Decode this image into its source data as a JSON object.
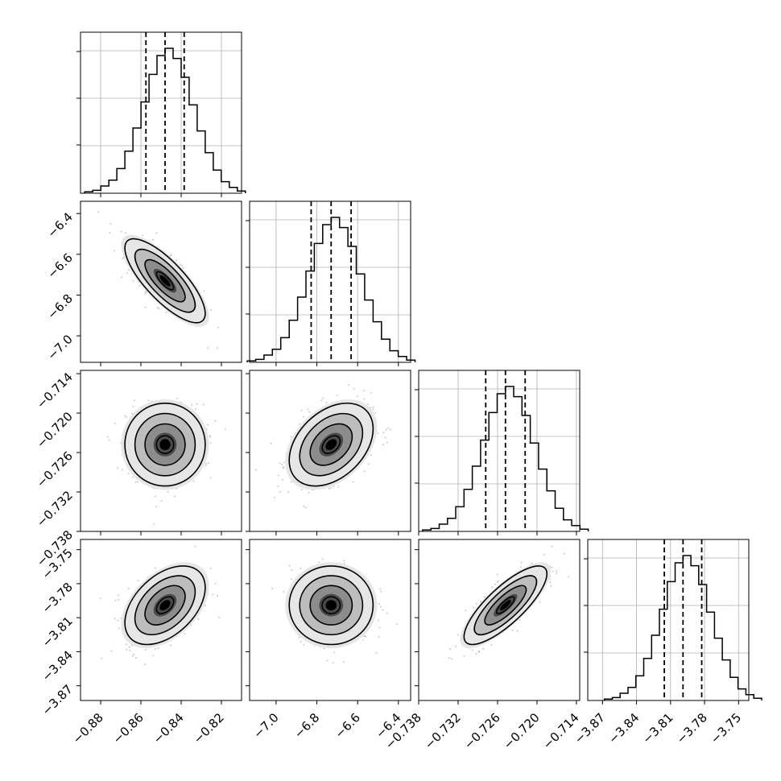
{
  "chart_data": {
    "type": "corner",
    "parameters": [
      {
        "axis_range": [
          -0.89,
          -0.81
        ],
        "ticks": [
          -0.88,
          -0.86,
          -0.84,
          -0.82
        ],
        "tick_labels": [
          "−0.88",
          "−0.86",
          "−0.84",
          "−0.82"
        ],
        "mean": -0.848,
        "sd": 0.0095,
        "quantiles": [
          -0.8575,
          -0.848,
          -0.8385
        ]
      },
      {
        "axis_range": [
          -7.13,
          -6.34
        ],
        "ticks": [
          -7.0,
          -6.8,
          -6.6,
          -6.4
        ],
        "tick_labels": [
          "−7.0",
          "−6.8",
          "−6.6",
          "−6.4"
        ],
        "mean": -6.73,
        "sd": 0.098,
        "quantiles": [
          -6.828,
          -6.73,
          -6.632
        ]
      },
      {
        "axis_range": [
          -0.738,
          -0.7135
        ],
        "ticks": [
          -0.738,
          -0.732,
          -0.726,
          -0.72,
          -0.714
        ],
        "tick_labels": [
          "−0.738",
          "−0.732",
          "−0.726",
          "−0.720",
          "−0.714"
        ],
        "mean": -0.7248,
        "sd": 0.003,
        "quantiles": [
          -0.7278,
          -0.7248,
          -0.7218
        ]
      },
      {
        "axis_range": [
          -3.883,
          -3.741
        ],
        "ticks": [
          -3.87,
          -3.84,
          -3.81,
          -3.78,
          -3.75
        ],
        "tick_labels": [
          "−3.87",
          "−3.84",
          "−3.81",
          "−3.78",
          "−3.75"
        ],
        "mean": -3.799,
        "sd": 0.0165,
        "quantiles": [
          -3.8155,
          -3.799,
          -3.7825
        ]
      }
    ],
    "correlations": {
      "1,0": -0.78,
      "2,0": 0.0,
      "2,1": 0.38,
      "3,0": 0.45,
      "3,1": 0.0,
      "3,2": 0.8
    },
    "histogram": {
      "bins": 20,
      "counts": [
        0.01,
        0.02,
        0.05,
        0.09,
        0.17,
        0.29,
        0.45,
        0.63,
        0.82,
        0.95,
        1.0,
        0.93,
        0.8,
        0.61,
        0.43,
        0.28,
        0.16,
        0.08,
        0.04,
        0.015
      ]
    },
    "contour_levels_sigma": [
      0.5,
      1.0,
      1.5,
      2.0
    ],
    "diagonal_grid": true,
    "quantile_line_style": "dashed"
  }
}
